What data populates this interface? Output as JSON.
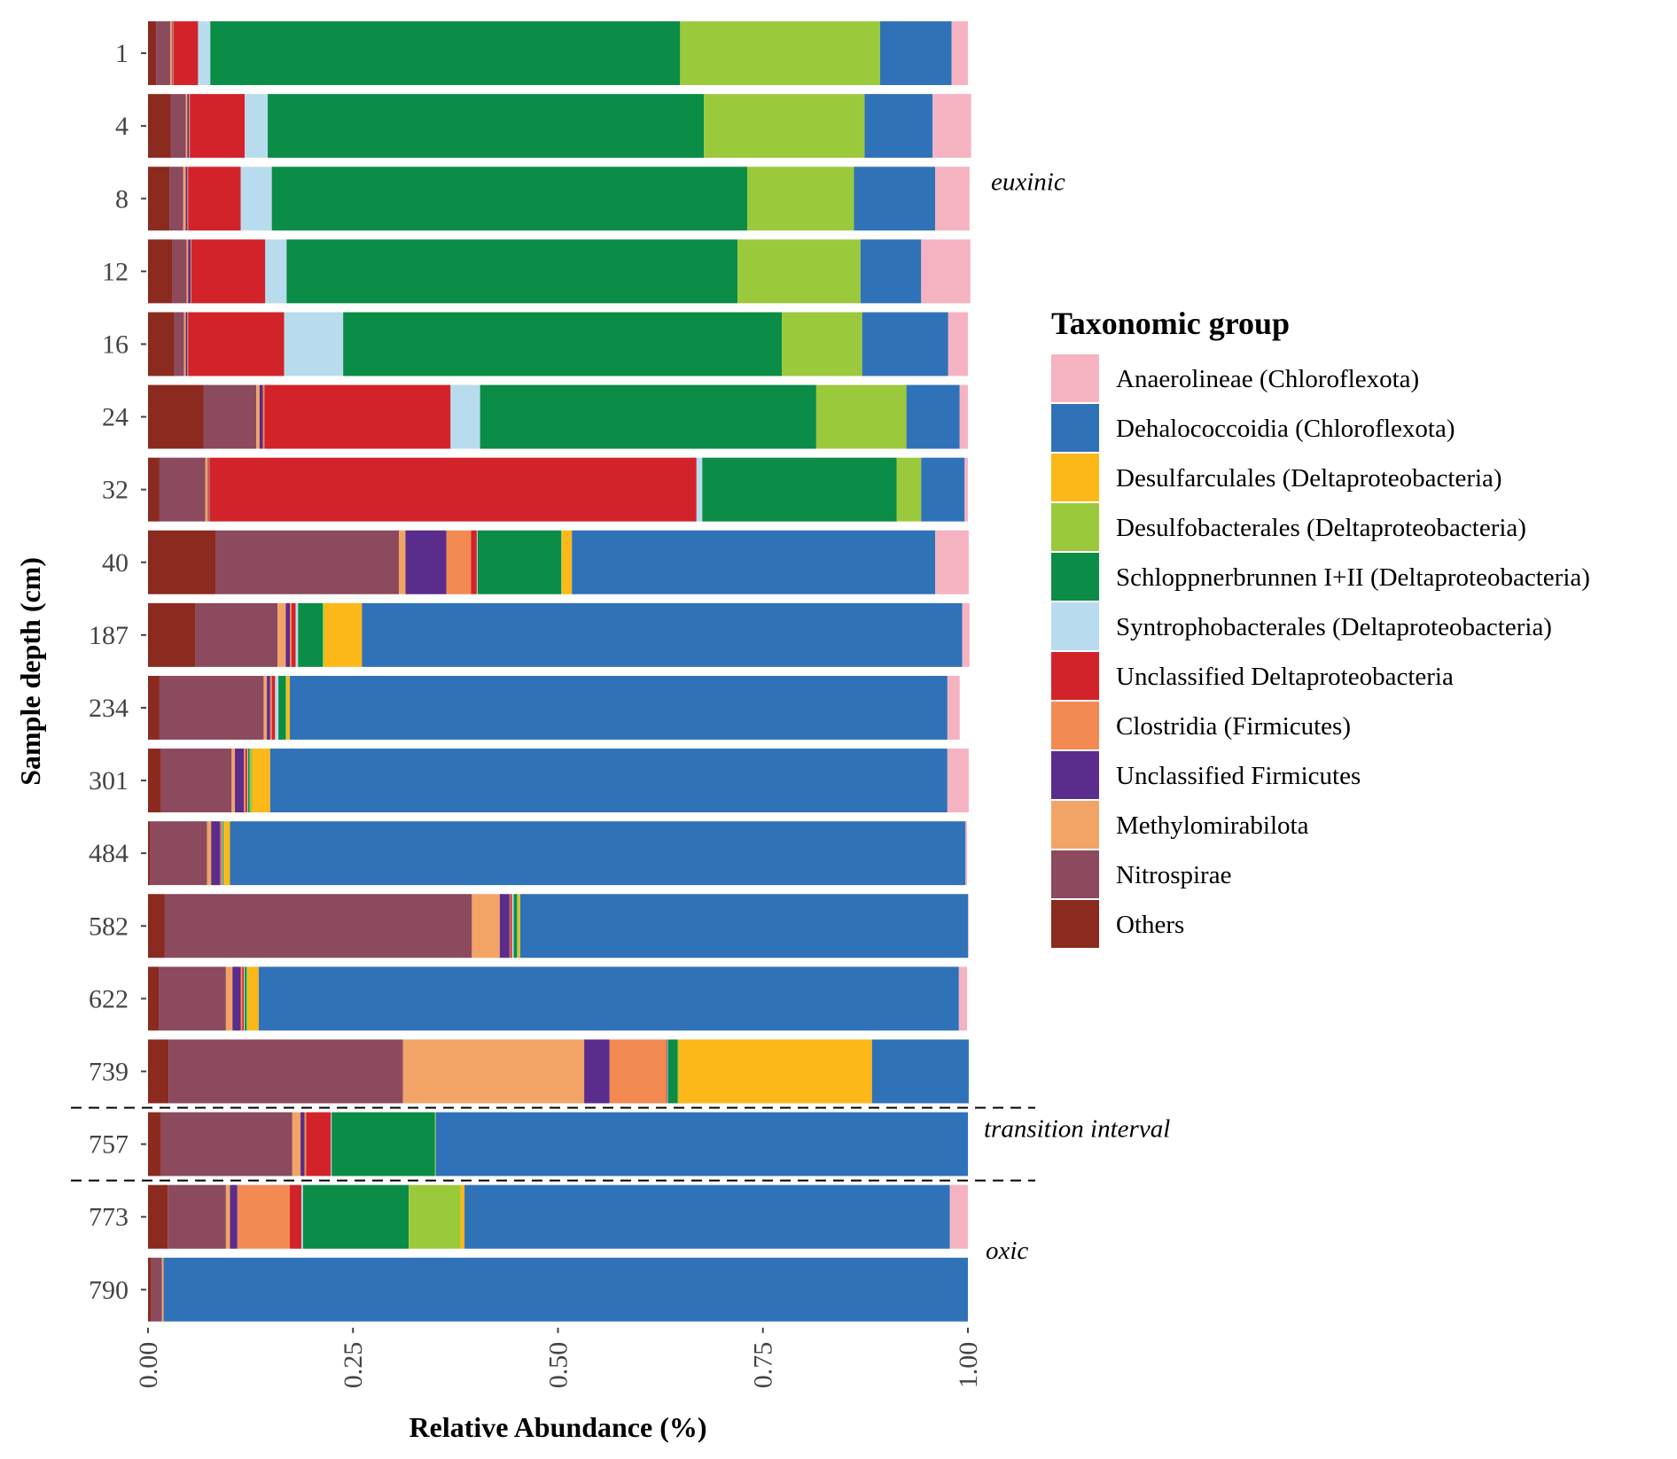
{
  "chart_data": {
    "type": "bar",
    "orientation": "horizontal",
    "stacked": true,
    "xlabel": "Relative Abundance (%)",
    "ylabel": "Sample depth (cm)",
    "xlim": [
      0,
      1
    ],
    "x_ticks": [
      "0.00",
      "0.25",
      "0.50",
      "0.75",
      "1.00"
    ],
    "grid": false,
    "legend_position": "right",
    "legend_title": "Taxonomic group",
    "categories": [
      "1",
      "4",
      "8",
      "12",
      "16",
      "24",
      "32",
      "40",
      "187",
      "234",
      "301",
      "484",
      "582",
      "622",
      "739",
      "757",
      "773",
      "790"
    ],
    "series": [
      {
        "name": "Others",
        "color": "#8b2a1f",
        "values": [
          0.01,
          0.028,
          0.026,
          0.03,
          0.032,
          0.068,
          0.014,
          0.083,
          0.058,
          0.014,
          0.016,
          0.003,
          0.02,
          0.013,
          0.025,
          0.016,
          0.024,
          0.004
        ]
      },
      {
        "name": "Nitrospirae",
        "color": "#8b4a5e",
        "values": [
          0.017,
          0.018,
          0.017,
          0.017,
          0.012,
          0.064,
          0.056,
          0.223,
          0.1,
          0.127,
          0.086,
          0.069,
          0.375,
          0.082,
          0.286,
          0.16,
          0.071,
          0.013
        ]
      },
      {
        "name": "Methylomirabilota",
        "color": "#f2a466",
        "values": [
          0.002,
          0.002,
          0.003,
          0.002,
          0.002,
          0.004,
          0.003,
          0.008,
          0.01,
          0.004,
          0.004,
          0.005,
          0.034,
          0.008,
          0.221,
          0.01,
          0.005,
          0.002
        ]
      },
      {
        "name": "Unclassified Firmicutes",
        "color": "#5a2c8c",
        "values": [
          0.001,
          0.002,
          0.002,
          0.003,
          0.002,
          0.004,
          0.001,
          0.05,
          0.005,
          0.004,
          0.011,
          0.011,
          0.012,
          0.01,
          0.031,
          0.005,
          0.009,
          0.0
        ]
      },
      {
        "name": "Clostridia (Firmicutes)",
        "color": "#f28a52",
        "values": [
          0.001,
          0.001,
          0.001,
          0.001,
          0.001,
          0.002,
          0.001,
          0.03,
          0.002,
          0.002,
          0.002,
          0.001,
          0.001,
          0.002,
          0.069,
          0.002,
          0.064,
          0.0
        ]
      },
      {
        "name": "Unclassified Deltaproteobacteria",
        "color": "#d2232a",
        "values": [
          0.03,
          0.067,
          0.064,
          0.09,
          0.117,
          0.227,
          0.594,
          0.007,
          0.005,
          0.004,
          0.002,
          0.001,
          0.002,
          0.002,
          0.001,
          0.03,
          0.014,
          0.0
        ]
      },
      {
        "name": "Syntrophobacterales (Deltaproteobacteria)",
        "color": "#b8dced",
        "values": [
          0.015,
          0.028,
          0.038,
          0.026,
          0.072,
          0.036,
          0.007,
          0.001,
          0.003,
          0.004,
          0.001,
          0.001,
          0.002,
          0.001,
          0.001,
          0.001,
          0.002,
          0.0
        ]
      },
      {
        "name": "Schloppnerbrunnen I+II (Deltaproteobacteria)",
        "color": "#0b8c47",
        "values": [
          0.573,
          0.532,
          0.58,
          0.55,
          0.535,
          0.41,
          0.237,
          0.102,
          0.03,
          0.009,
          0.002,
          0.001,
          0.004,
          0.002,
          0.012,
          0.126,
          0.129,
          0.0
        ]
      },
      {
        "name": "Desulfobacterales (Deltaproteobacteria)",
        "color": "#9bc93c",
        "values": [
          0.244,
          0.196,
          0.13,
          0.15,
          0.098,
          0.11,
          0.03,
          0.001,
          0.002,
          0.001,
          0.003,
          0.001,
          0.002,
          0.002,
          0.001,
          0.001,
          0.063,
          0.0
        ]
      },
      {
        "name": "Desulfarculales (Deltaproteobacteria)",
        "color": "#fbb818",
        "values": [
          0.0,
          0.0,
          0.0,
          0.0,
          0.0,
          0.0,
          0.0,
          0.012,
          0.046,
          0.004,
          0.022,
          0.007,
          0.002,
          0.013,
          0.236,
          0.0,
          0.005,
          0.0
        ]
      },
      {
        "name": "Dehalococcoidia (Chloroflexota)",
        "color": "#3072b8",
        "values": [
          0.087,
          0.083,
          0.099,
          0.074,
          0.105,
          0.065,
          0.053,
          0.443,
          0.732,
          0.802,
          0.826,
          0.897,
          0.546,
          0.854,
          0.118,
          0.649,
          0.592,
          0.981
        ]
      },
      {
        "name": "Anaerolineae (Chloroflexota)",
        "color": "#f5b3c2",
        "values": [
          0.02,
          0.047,
          0.042,
          0.06,
          0.024,
          0.01,
          0.004,
          0.041,
          0.009,
          0.015,
          0.026,
          0.002,
          0.001,
          0.01,
          0.0,
          0.0,
          0.022,
          0.0
        ]
      }
    ],
    "legend_order": [
      "Anaerolineae (Chloroflexota)",
      "Dehalococcoidia (Chloroflexota)",
      "Desulfarculales (Deltaproteobacteria)",
      "Desulfobacterales (Deltaproteobacteria)",
      "Schloppnerbrunnen I+II (Deltaproteobacteria)",
      "Syntrophobacterales (Deltaproteobacteria)",
      "Unclassified Deltaproteobacteria",
      "Clostridia (Firmicutes)",
      "Unclassified Firmicutes",
      "Methylomirabilota",
      "Nitrospirae",
      "Others"
    ],
    "zones": [
      {
        "label": "euxinic",
        "anchor_category": "8"
      },
      {
        "label": "transition interval",
        "anchor_category": "757"
      },
      {
        "label": "oxic",
        "anchor_category": "790"
      }
    ],
    "dividers_after_categories": [
      "739",
      "757"
    ]
  }
}
